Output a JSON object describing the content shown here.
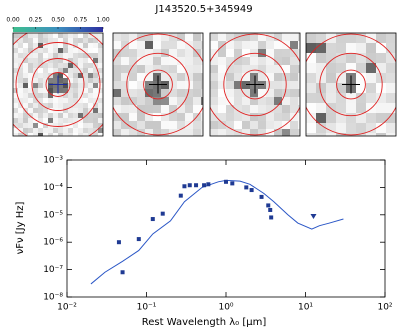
{
  "title": "J143520.5+345949",
  "colorbar": {
    "ticks": [
      {
        "value": 0,
        "label": "0.00"
      },
      {
        "value": 0.25,
        "label": "0.25"
      },
      {
        "value": 0.5,
        "label": "0.50"
      },
      {
        "value": 0.75,
        "label": "0.75"
      },
      {
        "value": 1,
        "label": "1.00"
      }
    ]
  },
  "chart_data": {
    "type": "scatter",
    "xlabel": "Rest Wavelength λ₀ [μm]",
    "ylabel": "νFν [Jy Hz]",
    "xscale": "log",
    "yscale": "log",
    "xlim": [
      0.01,
      100
    ],
    "ylim": [
      1e-08,
      0.001
    ],
    "xticks": [
      {
        "value": 0.01,
        "label": "10⁻²"
      },
      {
        "value": 0.1,
        "label": "10⁻¹"
      },
      {
        "value": 1,
        "label": "10⁰"
      },
      {
        "value": 10,
        "label": "10¹"
      },
      {
        "value": 100,
        "label": "10²"
      }
    ],
    "yticks": [
      {
        "value": 1e-08,
        "label": "10⁻⁸"
      },
      {
        "value": 1e-07,
        "label": "10⁻⁷"
      },
      {
        "value": 1e-06,
        "label": "10⁻⁶"
      },
      {
        "value": 1e-05,
        "label": "10⁻⁵"
      },
      {
        "value": 0.0001,
        "label": "10⁻⁴"
      },
      {
        "value": 0.001,
        "label": "10⁻³"
      }
    ],
    "series": [
      {
        "type": "line",
        "color": "#2a56c6",
        "x": [
          0.02,
          0.03,
          0.05,
          0.08,
          0.12,
          0.2,
          0.3,
          0.5,
          0.8,
          1,
          1.5,
          2,
          3,
          4,
          6,
          8,
          12,
          15,
          20,
          30
        ],
        "values": [
          3e-08,
          8e-08,
          2e-07,
          5e-07,
          2e-06,
          6e-06,
          3e-05,
          0.0001,
          0.00016,
          0.00018,
          0.00017,
          0.00013,
          6e-05,
          3e-05,
          1e-05,
          5e-06,
          3e-06,
          4e-06,
          5e-06,
          7e-06
        ]
      },
      {
        "type": "scatter",
        "marker": "square",
        "color": "#1f3a93",
        "x": [
          0.05,
          0.045,
          0.08,
          0.12,
          0.16,
          0.27,
          0.3,
          0.35,
          0.42,
          0.53,
          0.6,
          1,
          1.2,
          1.8,
          2.1,
          2.8,
          3.4,
          3.6,
          3.7
        ],
        "values": [
          8e-08,
          1e-06,
          1.3e-06,
          7e-06,
          1.1e-05,
          5e-05,
          0.00011,
          0.00012,
          0.00012,
          0.00012,
          0.00013,
          0.00016,
          0.00014,
          0.0001,
          8e-05,
          4.5e-05,
          2.2e-05,
          1.5e-05,
          8e-06
        ]
      },
      {
        "type": "scatter",
        "marker": "triangle",
        "color": "#1f3a93",
        "x": [
          12.6
        ],
        "values": [
          9e-06
        ]
      }
    ]
  }
}
